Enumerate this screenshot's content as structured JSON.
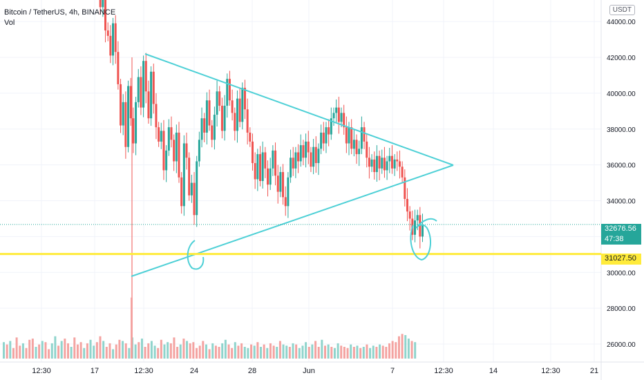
{
  "header": {
    "title": "Bitcoin / TetherUS, 4h, BINANCE",
    "indicator": "Vol"
  },
  "scale": {
    "currency": "USDT"
  },
  "price_tags": {
    "current_price": "32676.56",
    "countdown": "47:38",
    "level_price": "31027.50"
  },
  "colors": {
    "up": "#26a69a",
    "down": "#ef5350",
    "up_volume": "#8fd4cc",
    "down_volume": "#f4a3a1",
    "drawing": "#4ed0d6",
    "level_line": "#ffeb3b",
    "current_tag": "#26a69a",
    "level_tag": "#ffeb3b"
  },
  "chart_data": {
    "type": "candlestick",
    "title": "Bitcoin / TetherUS, 4h, BINANCE",
    "ylim": [
      25000,
      45200
    ],
    "y_ticks": [
      26000,
      28000,
      30000,
      32000,
      34000,
      36000,
      38000,
      40000,
      42000,
      44000
    ],
    "y_tick_labels": [
      "26000.00",
      "28000.00",
      "30000.00",
      "32000.00",
      "34000.00",
      "36000.00",
      "38000.00",
      "40000.00",
      "42000.00",
      "44000.00"
    ],
    "x_tick_labels": [
      "12:30",
      "17",
      "12:30",
      "24",
      "28",
      "Jun",
      "7",
      "12:30",
      "14",
      "12:30",
      "21"
    ],
    "grid": true,
    "close_series": [
      47500,
      44800,
      45800,
      43500,
      43200,
      42100,
      43900,
      42300,
      40500,
      38200,
      39500,
      37000,
      40400,
      38600,
      37200,
      39500,
      40900,
      39200,
      41800,
      40100,
      38600,
      41200,
      39400,
      38100,
      37300,
      37900,
      35700,
      36800,
      38100,
      37400,
      36200,
      37800,
      35300,
      33700,
      37200,
      36400,
      34300,
      35000,
      33200,
      36200,
      37400,
      38600,
      37800,
      39600,
      38200,
      37400,
      38800,
      40100,
      39300,
      37900,
      39300,
      40800,
      39600,
      38900,
      37900,
      39700,
      38400,
      40300,
      39100,
      37800,
      37300,
      36100,
      35200,
      36600,
      35100,
      36700,
      35800,
      34900,
      35800,
      36800,
      35400,
      34500,
      35600,
      34200,
      33700,
      35300,
      36400,
      35800,
      36700,
      36200,
      37100,
      36400,
      37300,
      36700,
      35900,
      37000,
      36100,
      36900,
      37800,
      37200,
      38100,
      37700,
      38600,
      38900,
      39200,
      38400,
      38900,
      38100,
      37200,
      38100,
      36900,
      37400,
      36600,
      36900,
      38100,
      37300,
      36400,
      35900,
      36300,
      35600,
      36500,
      35800,
      36400,
      35700,
      36200,
      36500,
      35800,
      36300,
      36200,
      35900,
      35300,
      34100,
      33400,
      33000,
      32100,
      32900,
      33200,
      32000,
      32676.56
    ],
    "volume_series": [
      1400,
      1200,
      1500,
      900,
      1800,
      1100,
      1300,
      900,
      1600,
      1700,
      1000,
      1200,
      1500,
      1400,
      800,
      1300,
      1900,
      1100,
      1500,
      1700,
      1300,
      1000,
      1800,
      1200,
      1400,
      900,
      1300,
      1600,
      1100,
      1400,
      1900,
      1500,
      1000,
      1300,
      800,
      1200,
      1600,
      1500,
      1300,
      900,
      1800,
      1200,
      1400,
      1700,
      1000,
      1300,
      1500,
      1100,
      900,
      1600,
      1200,
      1400,
      1300,
      1800,
      1000,
      1200,
      1700,
      1500,
      1300,
      1400,
      900,
      1100,
      1500,
      1200,
      800,
      1300,
      1100,
      1000,
      1300,
      1600,
      1200,
      900,
      1400,
      1100,
      1300,
      1000,
      900,
      1200,
      1100,
      1400,
      1000,
      1200,
      900,
      1300,
      1100,
      1000,
      1500,
      1200,
      1100,
      1000,
      1300,
      1200,
      900,
      1100,
      1400,
      1000,
      1200,
      1500,
      1000,
      1600,
      1100,
      1200,
      1000,
      900,
      1300,
      1100,
      1000,
      900,
      1200,
      1000,
      1100,
      900,
      1000,
      1200,
      900,
      1100,
      1000,
      1200,
      1100,
      1000,
      1300,
      1500,
      1400,
      1900,
      2100,
      2000,
      1700,
      1500,
      1400
    ],
    "volume_spike_at_crash": 5200,
    "triangle": {
      "upper_line": [
        [
          42450,
          36300
        ]
      ],
      "lower_line": [
        [
          30000,
          36300
        ]
      ]
    },
    "horizontal_level": 31027.5,
    "current_price": 32676.56
  }
}
